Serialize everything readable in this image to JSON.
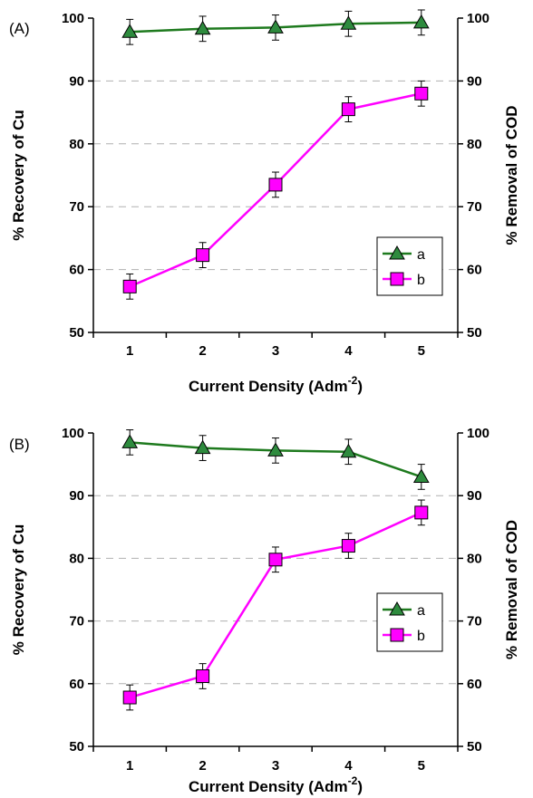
{
  "chart_data": [
    {
      "type": "line",
      "panel_label": "(A)",
      "xlabel_main": "Current Density (Adm",
      "xlabel_sup": "-2",
      "xlabel_end": ")",
      "ylabel_left": "%  Recovery of Cu",
      "ylabel_right": "%  Removal of COD",
      "categories": [
        "1",
        "2",
        "3",
        "4",
        "5"
      ],
      "ylim": [
        50,
        100
      ],
      "yticks": [
        "50",
        "60",
        "70",
        "80",
        "90",
        "100"
      ],
      "grid": "dashed horizontal",
      "legend_position": "right-middle",
      "series": [
        {
          "name": "a",
          "marker": "triangle",
          "color": "#1e7a1e",
          "marker_color": "#2e8b3e",
          "values": [
            97.8,
            98.3,
            98.5,
            99.1,
            99.3
          ],
          "errors": [
            2,
            2,
            2,
            2,
            2
          ]
        },
        {
          "name": "b",
          "marker": "square",
          "color": "#ff00ff",
          "marker_color": "#ff00ff",
          "values": [
            57.3,
            62.3,
            73.5,
            85.5,
            88.0
          ],
          "errors": [
            2,
            2,
            2,
            2,
            2
          ]
        }
      ]
    },
    {
      "type": "line",
      "panel_label": "(B)",
      "xlabel_main": "Current Density (Adm",
      "xlabel_sup": "-2",
      "xlabel_end": ")",
      "ylabel_left": "%  Recovery of Cu",
      "ylabel_right": "%  Removal of COD",
      "categories": [
        "1",
        "2",
        "3",
        "4",
        "5"
      ],
      "ylim": [
        50,
        100
      ],
      "yticks": [
        "50",
        "60",
        "70",
        "80",
        "90",
        "100"
      ],
      "grid": "dashed horizontal",
      "legend_position": "right-middle",
      "series": [
        {
          "name": "a",
          "marker": "triangle",
          "color": "#1e7a1e",
          "marker_color": "#2e8b3e",
          "values": [
            98.5,
            97.6,
            97.2,
            97.0,
            93.0
          ],
          "errors": [
            2,
            2,
            2,
            2,
            2
          ]
        },
        {
          "name": "b",
          "marker": "square",
          "color": "#ff00ff",
          "marker_color": "#ff00ff",
          "values": [
            57.8,
            61.2,
            79.8,
            82.0,
            87.3
          ],
          "errors": [
            2,
            2,
            2,
            2,
            2
          ]
        }
      ]
    }
  ]
}
